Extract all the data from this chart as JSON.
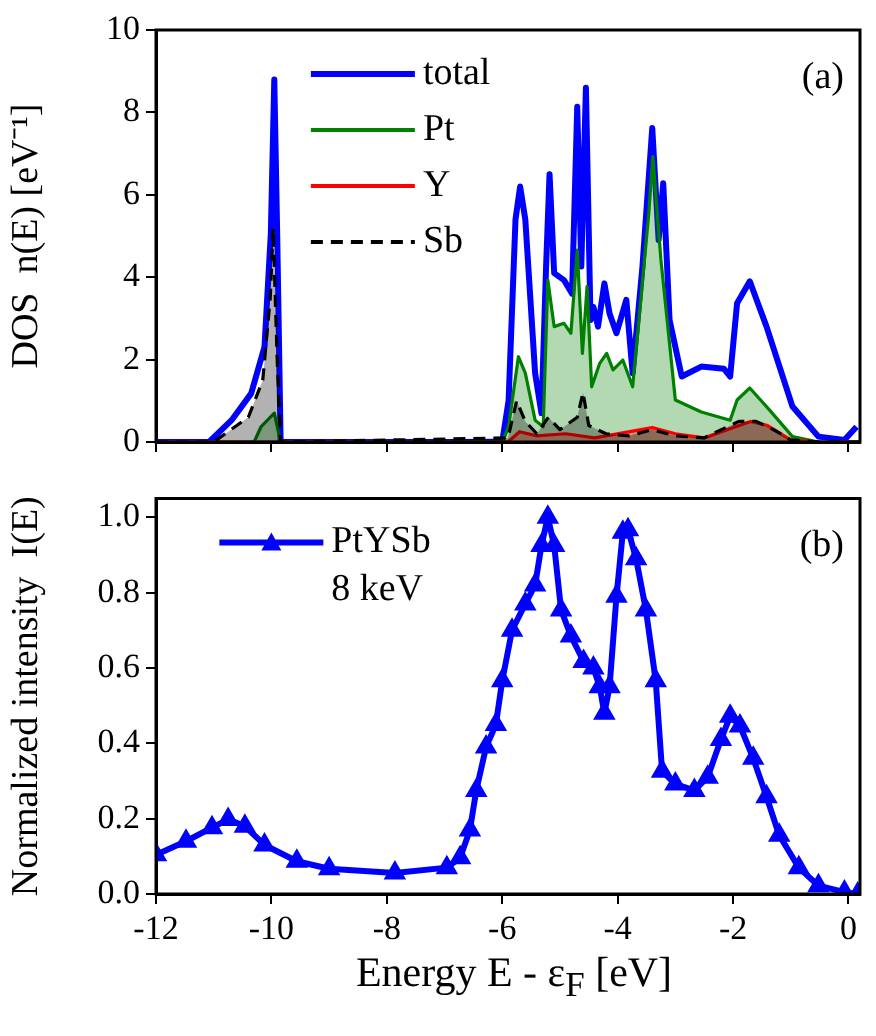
{
  "chart_data": [
    {
      "type": "area",
      "ylabel": "DOS  n(E) [eV⁻¹]",
      "xlim": [
        -12,
        0.2
      ],
      "xticks": [
        -12,
        -10,
        -8,
        -6,
        -4,
        -2,
        0
      ],
      "ylim": [
        0,
        10
      ],
      "yticks": [
        0,
        2,
        4,
        6,
        8,
        10
      ],
      "tick_labels": "y",
      "grid": false,
      "legend": "top left",
      "marker": "none",
      "annotations": [
        "(a)"
      ],
      "series": [
        {
          "name": "total",
          "type": "line",
          "color": "#0000ff",
          "x": [
            -12,
            -11.08,
            -10.69,
            -10.35,
            -10.12,
            -10.01,
            -9.95,
            -9.9,
            -9.84,
            -6.0,
            -5.89,
            -5.77,
            -5.69,
            -5.6,
            -5.43,
            -5.32,
            -5.24,
            -5.18,
            -5.1,
            -4.93,
            -4.79,
            -4.7,
            -4.63,
            -4.55,
            -4.47,
            -4.42,
            -4.34,
            -4.23,
            -4.14,
            -4.02,
            -3.85,
            -3.74,
            -3.57,
            -3.4,
            -3.29,
            -3.21,
            -3.1,
            -2.89,
            -2.55,
            -2.16,
            -2.05,
            -1.93,
            -1.71,
            -1.42,
            -0.97,
            -0.52,
            -0.07,
            0.14
          ],
          "values": [
            0,
            0,
            0.53,
            1.18,
            2.31,
            5.06,
            8.8,
            5.06,
            0,
            0,
            1.0,
            5.4,
            6.2,
            5.4,
            1.67,
            0.7,
            4.26,
            6.5,
            4.1,
            3.93,
            3.6,
            8.14,
            4.26,
            8.6,
            2.96,
            3.28,
            2.8,
            3.85,
            3.12,
            2.64,
            3.45,
            1.67,
            4.26,
            7.62,
            4.9,
            6.28,
            2.96,
            1.59,
            1.83,
            1.78,
            1.59,
            3.37,
            3.9,
            2.8,
            0.86,
            0.13,
            0.05,
            0.37
          ]
        },
        {
          "name": "Pt",
          "color": "#008000",
          "x": [
            -12,
            -10.3,
            -10.18,
            -9.95,
            -9.84,
            -6.0,
            -5.89,
            -5.72,
            -5.6,
            -5.43,
            -5.29,
            -5.21,
            -5.1,
            -4.93,
            -4.81,
            -4.7,
            -4.61,
            -4.53,
            -4.45,
            -4.31,
            -4.19,
            -4.08,
            -3.91,
            -3.74,
            -3.46,
            -3.39,
            -3.25,
            -3.0,
            -2.55,
            -2.05,
            -1.93,
            -1.71,
            -1.37,
            -0.97,
            -0.52,
            0.2
          ],
          "values": [
            0,
            0,
            0.37,
            0.7,
            0,
            0,
            0.37,
            2.07,
            1.67,
            0.53,
            0.37,
            3.93,
            2.8,
            2.88,
            2.64,
            4.66,
            2.15,
            3.77,
            1.34,
            1.91,
            2.15,
            1.75,
            1.99,
            1.34,
            5.55,
            6.93,
            4.42,
            1.02,
            0.73,
            0.53,
            1.02,
            1.31,
            0.78,
            0.13,
            0,
            0
          ]
        },
        {
          "name": "Y",
          "color": "#ff0000",
          "x": [
            -12,
            -5.9,
            -5.7,
            -5.4,
            -4.9,
            -4.4,
            -3.4,
            -3.0,
            -2.5,
            -1.7,
            -1.4,
            -1.0,
            -0.5,
            0.2
          ],
          "values": [
            0,
            0,
            0.25,
            0.15,
            0.2,
            0.1,
            0.35,
            0.2,
            0.1,
            0.5,
            0.4,
            0.05,
            0,
            0
          ]
        },
        {
          "name": "Sb",
          "color": "#000000",
          "line_style": "dashed",
          "x": [
            -12,
            -11.0,
            -10.7,
            -10.4,
            -10.15,
            -10.02,
            -9.97,
            -9.9,
            -9.84,
            -5.9,
            -5.75,
            -5.6,
            -5.4,
            -5.2,
            -5.0,
            -4.7,
            -4.6,
            -4.5,
            -4.2,
            -3.8,
            -3.4,
            -3.0,
            -2.5,
            -1.9,
            -1.6,
            -1.3,
            -1.0,
            -0.5,
            0.2
          ],
          "values": [
            0,
            0,
            0.3,
            0.6,
            1.5,
            3.5,
            5.2,
            2.0,
            0,
            0.1,
            1.0,
            0.5,
            0.2,
            0.6,
            0.3,
            0.6,
            1.2,
            0.4,
            0.2,
            0.15,
            0.3,
            0.15,
            0.1,
            0.5,
            0.5,
            0.3,
            0.05,
            0,
            0
          ]
        }
      ]
    },
    {
      "type": "line",
      "ylabel": "Normalized intensity  I(E)",
      "xlabel": "Energy  E - ε$_{F}$ [eV]",
      "xlim": [
        -12,
        0.2
      ],
      "xticks": [
        -12,
        -10,
        -8,
        -6,
        -4,
        -2,
        0
      ],
      "ylim": [
        0,
        1.05
      ],
      "yticks": [
        {
          "value": 0,
          "label": "0.0"
        },
        0.2,
        0.4,
        0.6,
        0.8,
        {
          "value": 1,
          "label": "1.0"
        }
      ],
      "grid": false,
      "legend": "top left",
      "marker": "triangle",
      "annotations": [
        "(b)",
        "8 keV"
      ],
      "series": [
        {
          "name": "PtYSb",
          "color": "#0000ff",
          "x": [
            -12,
            -11.48,
            -11.03,
            -10.75,
            -10.46,
            -10.12,
            -9.56,
            -9.0,
            -7.86,
            -6.96,
            -6.73,
            -6.56,
            -6.45,
            -6.28,
            -6.11,
            -6.0,
            -5.83,
            -5.6,
            -5.43,
            -5.32,
            -5.21,
            -5.1,
            -4.98,
            -4.81,
            -4.59,
            -4.42,
            -4.31,
            -4.23,
            -4.14,
            -4.02,
            -3.91,
            -3.82,
            -3.68,
            -3.51,
            -3.34,
            -3.23,
            -3.0,
            -2.67,
            -2.44,
            -2.21,
            -2.05,
            -1.88,
            -1.65,
            -1.42,
            -1.2,
            -0.86,
            -0.52,
            -0.07,
            0.16
          ],
          "values": [
            0.104,
            0.14,
            0.176,
            0.198,
            0.18,
            0.13,
            0.087,
            0.067,
            0.056,
            0.07,
            0.096,
            0.17,
            0.275,
            0.39,
            0.45,
            0.566,
            0.7,
            0.77,
            0.82,
            0.925,
            1.0,
            0.925,
            0.754,
            0.685,
            0.617,
            0.6,
            0.55,
            0.48,
            0.55,
            0.79,
            0.96,
            0.967,
            0.89,
            0.754,
            0.566,
            0.326,
            0.292,
            0.275,
            0.31,
            0.41,
            0.472,
            0.446,
            0.36,
            0.258,
            0.156,
            0.07,
            0.022,
            0.005,
            0.0
          ]
        }
      ]
    }
  ]
}
